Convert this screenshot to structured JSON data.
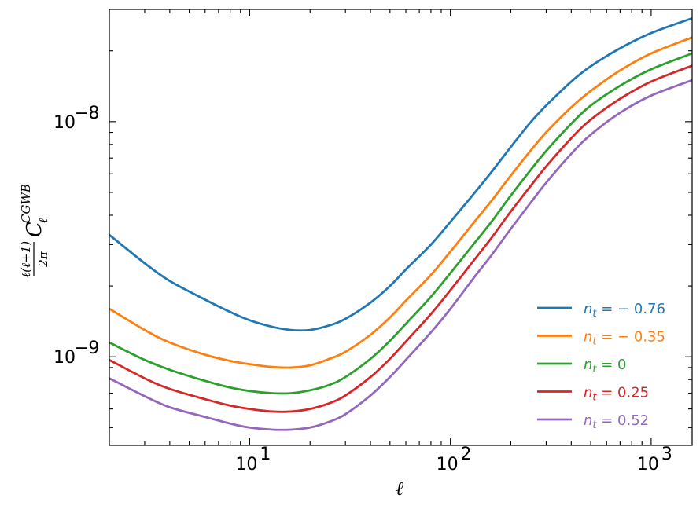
{
  "chart_data": {
    "type": "line",
    "xlabel": "ℓ",
    "ylabel": {
      "fraction_numerator": "ℓ(ℓ+1)",
      "fraction_denominator": "2π",
      "symbol": "C",
      "subscript": "ℓ",
      "superscript": "CGWB"
    },
    "x_scale": "log",
    "y_scale": "log",
    "xlim": [
      2,
      1600
    ],
    "ylim": [
      4.2e-10,
      3e-08
    ],
    "x_ticks": [
      {
        "value": 10,
        "base": "10",
        "exp": "1"
      },
      {
        "value": 100,
        "base": "10",
        "exp": "2"
      },
      {
        "value": 1000,
        "base": "10",
        "exp": "3"
      }
    ],
    "y_ticks": [
      {
        "value": 1e-09,
        "base": "10",
        "exp": "−9"
      },
      {
        "value": 1e-08,
        "base": "10",
        "exp": "−8"
      }
    ],
    "grid": false,
    "legend_position": "lower-right",
    "x": [
      2,
      3,
      4,
      6,
      8,
      10,
      13,
      16,
      20,
      25,
      30,
      40,
      50,
      60,
      80,
      100,
      130,
      160,
      200,
      250,
      300,
      400,
      500,
      700,
      1000,
      1600
    ],
    "series": [
      {
        "name": "n_t = −0.76",
        "label_sym": "n",
        "label_sub": "t",
        "label_val": " = − 0.76",
        "color": "#1f77b4",
        "values": [
          3.3e-09,
          2.5e-09,
          2.1e-09,
          1.75e-09,
          1.55e-09,
          1.43e-09,
          1.34e-09,
          1.3e-09,
          1.3e-09,
          1.36e-09,
          1.45e-09,
          1.7e-09,
          2e-09,
          2.35e-09,
          3e-09,
          3.75e-09,
          4.9e-09,
          6.1e-09,
          7.8e-09,
          9.9e-09,
          1.17e-08,
          1.48e-08,
          1.72e-08,
          2.05e-08,
          2.38e-08,
          2.75e-08
        ]
      },
      {
        "name": "n_t = −0.35",
        "label_sym": "n",
        "label_sub": "t",
        "label_val": " = − 0.35",
        "color": "#ff7f0e",
        "values": [
          1.6e-09,
          1.3e-09,
          1.15e-09,
          1.02e-09,
          9.6e-10,
          9.3e-10,
          9.05e-10,
          9e-10,
          9.2e-10,
          9.8e-10,
          1.05e-09,
          1.24e-09,
          1.47e-09,
          1.73e-09,
          2.23e-09,
          2.8e-09,
          3.7e-09,
          4.6e-09,
          5.9e-09,
          7.5e-09,
          9e-09,
          1.15e-08,
          1.35e-08,
          1.65e-08,
          1.95e-08,
          2.28e-08
        ]
      },
      {
        "name": "n_t = 0",
        "label_sym": "n",
        "label_sub": "t",
        "label_val": " = 0",
        "color": "#2ca02c",
        "values": [
          1.15e-09,
          9.7e-10,
          8.8e-10,
          7.9e-10,
          7.4e-10,
          7.15e-10,
          7e-10,
          7e-10,
          7.2e-10,
          7.6e-10,
          8.2e-10,
          9.8e-10,
          1.17e-09,
          1.38e-09,
          1.8e-09,
          2.27e-09,
          3e-09,
          3.75e-09,
          4.85e-09,
          6.2e-09,
          7.5e-09,
          9.8e-09,
          1.17e-08,
          1.42e-08,
          1.67e-08,
          1.95e-08
        ]
      },
      {
        "name": "n_t = 0.25",
        "label_sym": "n",
        "label_sub": "t",
        "label_val": " = 0.25",
        "color": "#d62728",
        "values": [
          9.7e-10,
          8.1e-10,
          7.3e-10,
          6.6e-10,
          6.2e-10,
          6e-10,
          5.85e-10,
          5.85e-10,
          6e-10,
          6.35e-10,
          6.85e-10,
          8.2e-10,
          9.8e-10,
          1.16e-09,
          1.52e-09,
          1.92e-09,
          2.55e-09,
          3.2e-09,
          4.15e-09,
          5.3e-09,
          6.45e-09,
          8.5e-09,
          1.02e-08,
          1.25e-08,
          1.48e-08,
          1.73e-08
        ]
      },
      {
        "name": "n_t = 0.52",
        "label_sym": "n",
        "label_sub": "t",
        "label_val": " = 0.52",
        "color": "#9467bd",
        "values": [
          8.1e-10,
          6.8e-10,
          6.1e-10,
          5.55e-10,
          5.2e-10,
          5e-10,
          4.9e-10,
          4.9e-10,
          5e-10,
          5.3e-10,
          5.7e-10,
          6.85e-10,
          8.2e-10,
          9.7e-10,
          1.27e-09,
          1.6e-09,
          2.15e-09,
          2.7e-09,
          3.5e-09,
          4.5e-09,
          5.5e-09,
          7.3e-09,
          8.8e-09,
          1.09e-08,
          1.29e-08,
          1.5e-08
        ]
      }
    ]
  }
}
